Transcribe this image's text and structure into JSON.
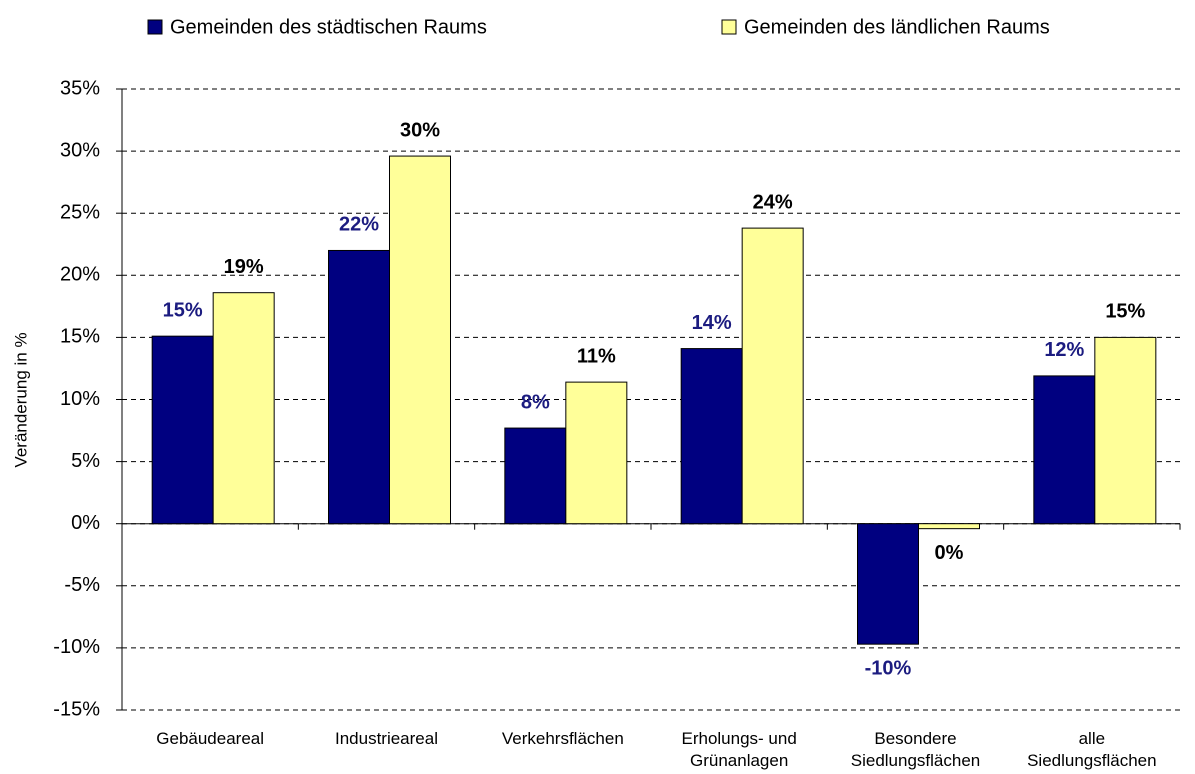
{
  "chart_data": {
    "type": "bar",
    "y_axis_label": "Veränderung in %",
    "categories": [
      "Gebäudeareal",
      "Industrieareal",
      "Verkehrsflächen",
      "Erholungs- und\nGrünanlagen",
      "Besondere\nSiedlungsflächen",
      "alle\nSiedlungsflächen"
    ],
    "series": [
      {
        "name": "Gemeinden des städtischen Raums",
        "color": "#000080",
        "label_color": "#1c1c80",
        "values": [
          15.1,
          22.0,
          7.7,
          14.1,
          -9.7,
          11.9
        ],
        "value_labels": [
          "15%",
          "22%",
          "8%",
          "14%",
          "-10%",
          "12%"
        ]
      },
      {
        "name": "Gemeinden des ländlichen Raums",
        "color": "#ffff99",
        "label_color": "#000000",
        "values": [
          18.6,
          29.6,
          11.4,
          23.8,
          -0.4,
          15.0
        ],
        "value_labels": [
          "19%",
          "30%",
          "11%",
          "24%",
          "0%",
          "15%"
        ]
      }
    ],
    "ylim": [
      -15,
      35
    ],
    "yticks": [
      {
        "value": -15,
        "label": "-15%"
      },
      {
        "value": -10,
        "label": "-10%"
      },
      {
        "value": -5,
        "label": "-5%"
      },
      {
        "value": 0,
        "label": "0%"
      },
      {
        "value": 5,
        "label": "5%"
      },
      {
        "value": 10,
        "label": "10%"
      },
      {
        "value": 15,
        "label": "15%"
      },
      {
        "value": 20,
        "label": "20%"
      },
      {
        "value": 25,
        "label": "25%"
      },
      {
        "value": 30,
        "label": "30%"
      },
      {
        "value": 35,
        "label": "35%"
      }
    ],
    "grid": true,
    "legend": "top"
  }
}
